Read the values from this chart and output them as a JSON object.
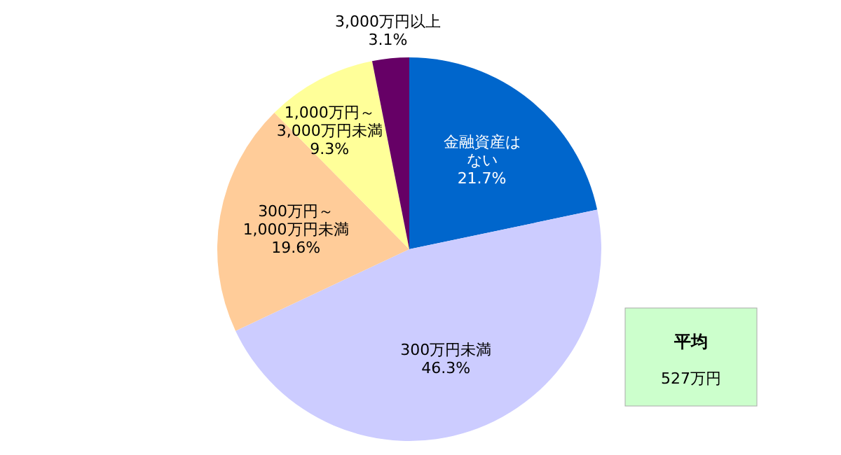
{
  "chart_data": {
    "type": "pie",
    "categories": [
      "金融資産はない",
      "300万円未満",
      "300万円～1,000万円未満",
      "1,000万円～3,000万円未満",
      "3,000万円以上"
    ],
    "values": [
      21.7,
      46.3,
      19.6,
      9.3,
      3.1
    ],
    "colors": [
      "#0066cc",
      "#ccccff",
      "#ffcc99",
      "#ffff99",
      "#660066"
    ],
    "value_labels": [
      "21.7%",
      "46.3%",
      "19.6%",
      "9.3%",
      "3.1%"
    ],
    "legend": false,
    "annotations": [
      "平均",
      "527万円"
    ]
  }
}
